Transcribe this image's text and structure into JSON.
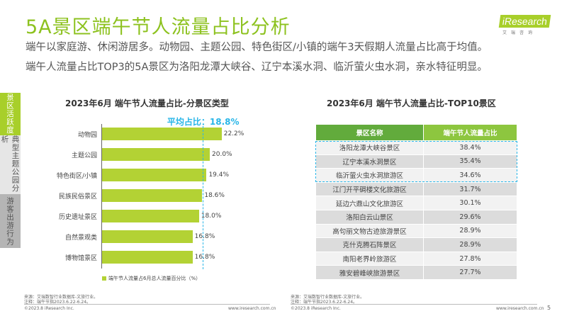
{
  "title": "5A景区端午节人流量占比分析",
  "subtitle": [
    "端午以家庭游、休闲游居多。动物园、主题公园、特色街区/小镇的端午3天假期人流量占比高于均值。",
    "端午人流量占比TOP3的5A景区为洛阳龙潭大峡谷、辽宁本溪水洞、临沂萤火虫水洞，亲水特征明显。"
  ],
  "logo": {
    "text": "iResearch",
    "sub": "艾瑞咨询"
  },
  "side_tabs": [
    {
      "label": "景区活跃度",
      "active": true
    },
    {
      "label": "典型主题公园分析"
    },
    {
      "label": "游客出游行为"
    }
  ],
  "colors": {
    "accent": "#8dc21f",
    "bar": "#b3d234",
    "avg_line": "#29b6e8",
    "header_dark": "#62ab3c",
    "header_light": "#8dc63f"
  },
  "chart_data": [
    {
      "type": "bar",
      "orientation": "horizontal",
      "title": "2023年6月 端午节人流量占比-分景区类型",
      "categories": [
        "动物园",
        "主题公园",
        "特色街区/小镇",
        "民族民俗景区",
        "历史遗址景区",
        "自然景观类",
        "博物馆景区"
      ],
      "values": [
        22.2,
        20.0,
        19.4,
        18.6,
        18.0,
        16.8,
        16.8
      ],
      "value_labels": [
        "22.2%",
        "20.0%",
        "19.4%",
        "18.6%",
        "18.0%",
        "16.8%",
        "16.8%"
      ],
      "average": 18.8,
      "average_label": "平均占比：18.8%",
      "legend": "端午节人流量占6月总人流量百分比（%）",
      "legend_position": "bottom",
      "xlim": [
        0,
        25
      ]
    },
    {
      "type": "table",
      "title": "2023年6月 端午节人流量占比-TOP10景区",
      "columns": [
        "景区名称",
        "端午节人流量占比"
      ],
      "rows": [
        [
          "洛阳龙潭大峡谷景区",
          "38.4%"
        ],
        [
          "辽宁本溪水洞景区",
          "35.4%"
        ],
        [
          "临沂萤火虫水洞旅游区",
          "34.6%"
        ],
        [
          "江门开平碉楼文化旅游区",
          "31.7%"
        ],
        [
          "延边六鼎山文化旅游区",
          "30.1%"
        ],
        [
          "洛阳白云山景区",
          "29.6%"
        ],
        [
          "高句丽文物古迹旅游景区",
          "28.9%"
        ],
        [
          "克什克腾石阵景区",
          "28.9%"
        ],
        [
          "南阳老界岭旅游区",
          "27.8%"
        ],
        [
          "雅安碧峰峡旅游景区",
          "27.7%"
        ]
      ],
      "highlighted_rows": 3
    }
  ],
  "footer": {
    "source": "来源：艾瑞数智行业数据库-文旅行业。",
    "note": "注释：端午节指2023.6.22-6.24。",
    "copyright": "©2023.8 iResearch Inc.",
    "url": "www.iresearch.com.cn",
    "page": "5"
  }
}
